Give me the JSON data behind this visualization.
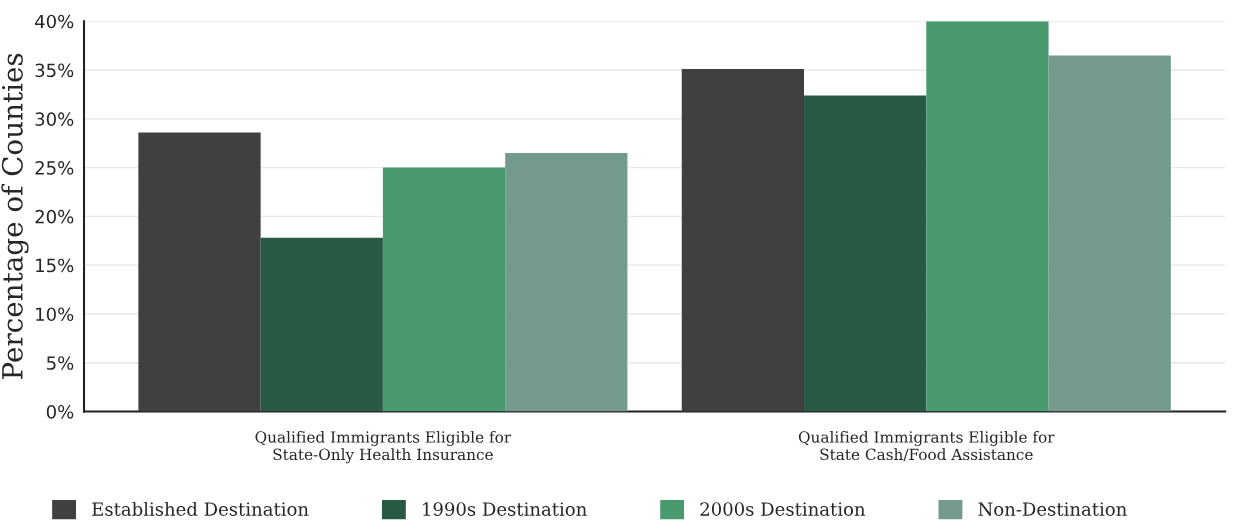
{
  "chart_data": {
    "type": "bar",
    "ylabel": "Percentage of Counties",
    "categories": [
      "Qualified Immigrants Eligible for\nState-Only Health Insurance",
      "Qualified Immigrants Eligible for\nState Cash/Food Assistance"
    ],
    "series": [
      {
        "name": "Established Destination",
        "color": "#404040",
        "values": [
          28.6,
          35.1
        ]
      },
      {
        "name": "1990s Destination",
        "color": "#285a43",
        "values": [
          17.8,
          32.4
        ]
      },
      {
        "name": "2000s Destination",
        "color": "#4a9a70",
        "values": [
          25.0,
          40.0
        ]
      },
      {
        "name": "Non-Destination",
        "color": "#739a8b",
        "values": [
          26.5,
          36.5
        ]
      }
    ],
    "ylim": [
      0,
      40
    ],
    "yticks": [
      {
        "value": 0,
        "label": "0%"
      },
      {
        "value": 5,
        "label": "5%"
      },
      {
        "value": 10,
        "label": "10%"
      },
      {
        "value": 15,
        "label": "15%"
      },
      {
        "value": 20,
        "label": "20%"
      },
      {
        "value": 25,
        "label": "25%"
      },
      {
        "value": 30,
        "label": "30%"
      },
      {
        "value": 35,
        "label": "35%"
      },
      {
        "value": 40,
        "label": "40%"
      }
    ],
    "grid": "y",
    "legend": "bottom"
  }
}
